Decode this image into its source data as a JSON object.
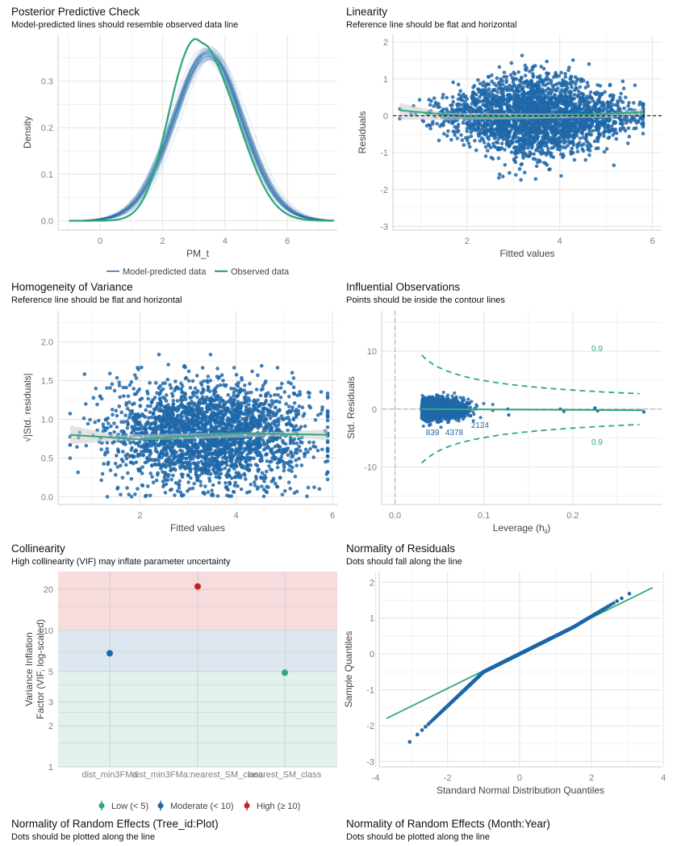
{
  "colors": {
    "blue": "#1f67a8",
    "green": "#2ea97b",
    "red": "#cc1f24",
    "grid": "#e6e6e6",
    "tick": "#7f7f7f",
    "high_band": "#f7dbdd",
    "moderate_band": "#dde7f0",
    "low_band": "#e2f1ea"
  },
  "chart_data": [
    {
      "type": "line",
      "title": "Posterior Predictive Check",
      "subtitle": "Model-predicted lines should resemble observed data line",
      "xlabel": "PM_t",
      "ylabel": "Density",
      "xlim": [
        -1.35,
        7.6
      ],
      "ylim": [
        -0.02,
        0.4
      ],
      "xticks": [
        "0",
        "2",
        "4",
        "6"
      ],
      "yticks": [
        "0.0",
        "0.1",
        "0.2",
        "0.3"
      ],
      "grid": true,
      "legend": {
        "position": "bottom",
        "entries": [
          "Model-predicted data",
          "Observed data"
        ]
      },
      "series": [
        {
          "name": "Model-predicted data",
          "peak_x": 3.6,
          "peak_y": 0.355
        },
        {
          "name": "Observed data",
          "peaks": [
            [
              2.95,
              0.32
            ],
            [
              3.7,
              0.343
            ]
          ],
          "dip": [
            3.2,
            0.31
          ]
        }
      ]
    },
    {
      "type": "scatter",
      "title": "Linearity",
      "subtitle": "Reference line should be flat and horizontal",
      "xlabel": "Fitted values",
      "ylabel": "Residuals",
      "xlim": [
        0.4,
        6.2
      ],
      "ylim": [
        -3.1,
        2.2
      ],
      "xticks": [
        "2",
        "4",
        "6"
      ],
      "yticks": [
        "-3",
        "-2",
        "-1",
        "0",
        "1",
        "2"
      ],
      "reference_line": 0,
      "grid": true
    },
    {
      "type": "scatter",
      "title": "Homogeneity of Variance",
      "subtitle": "Reference line should be flat and horizontal",
      "xlabel": "Fitted values",
      "ylabel": "√|Std. residuals|",
      "xlim": [
        0.3,
        6.1
      ],
      "ylim": [
        -0.1,
        2.4
      ],
      "xticks": [
        "2",
        "4",
        "6"
      ],
      "yticks": [
        "0.0",
        "0.5",
        "1.0",
        "1.5",
        "2.0"
      ],
      "grid": true
    },
    {
      "type": "scatter",
      "title": "Influential Observations",
      "subtitle": "Points should be inside the contour lines",
      "xlabel": "Leverage (h",
      "xlabel_sub": "ii",
      "xlabel_end": ")",
      "ylabel": "Std. Residuals",
      "xlim": [
        -0.015,
        0.3
      ],
      "ylim": [
        -16.5,
        17
      ],
      "xticks": [
        "0.0",
        "0.1",
        "0.2"
      ],
      "yticks": [
        "-10",
        "0",
        "10"
      ],
      "grid": true,
      "contour_labels": [
        "0.9",
        "0.9"
      ],
      "annotations": [
        "839",
        "4378",
        "2124"
      ]
    },
    {
      "type": "scatter",
      "title": "Collinearity",
      "subtitle": "High collinearity (VIF) may inflate parameter uncertainty",
      "ylabel": "Variance Inflation",
      "ylabel2": "Factor (VIF, log-scaled)",
      "yscale": "log",
      "ylim": [
        1,
        27
      ],
      "yticks": [
        "1",
        "2",
        "3",
        "5",
        "10",
        "20"
      ],
      "categories": [
        "dist_min3FMa",
        "dist_min3FMa:nearest_SM_class",
        "nearest_SM_class"
      ],
      "values": [
        6.8,
        21,
        4.9
      ],
      "levels": [
        "Moderate",
        "High",
        "Low"
      ],
      "legend": {
        "position": "bottom",
        "entries": [
          "Low (< 5)",
          "Moderate (< 10)",
          "High (≥ 10)"
        ]
      }
    },
    {
      "type": "scatter",
      "title": "Normality of Residuals",
      "subtitle": "Dots should fall along the line",
      "xlabel": "Standard Normal Distribution Quantiles",
      "ylabel": "Sample Quantiles",
      "xlim": [
        -3.9,
        3.95
      ],
      "ylim": [
        -3.15,
        2.3
      ],
      "xticks": [
        "-4",
        "-2",
        "0",
        "2",
        "4"
      ],
      "yticks": [
        "-3",
        "-2",
        "-1",
        "0",
        "1",
        "2"
      ],
      "grid": true
    }
  ],
  "bottom_panels": [
    {
      "title": "Normality of Random Effects (Tree_id:Plot)",
      "subtitle": "Dots should be plotted along the line"
    },
    {
      "title": "Normality of Random Effects (Month:Year)",
      "subtitle": "Dots should be plotted along the line"
    }
  ]
}
